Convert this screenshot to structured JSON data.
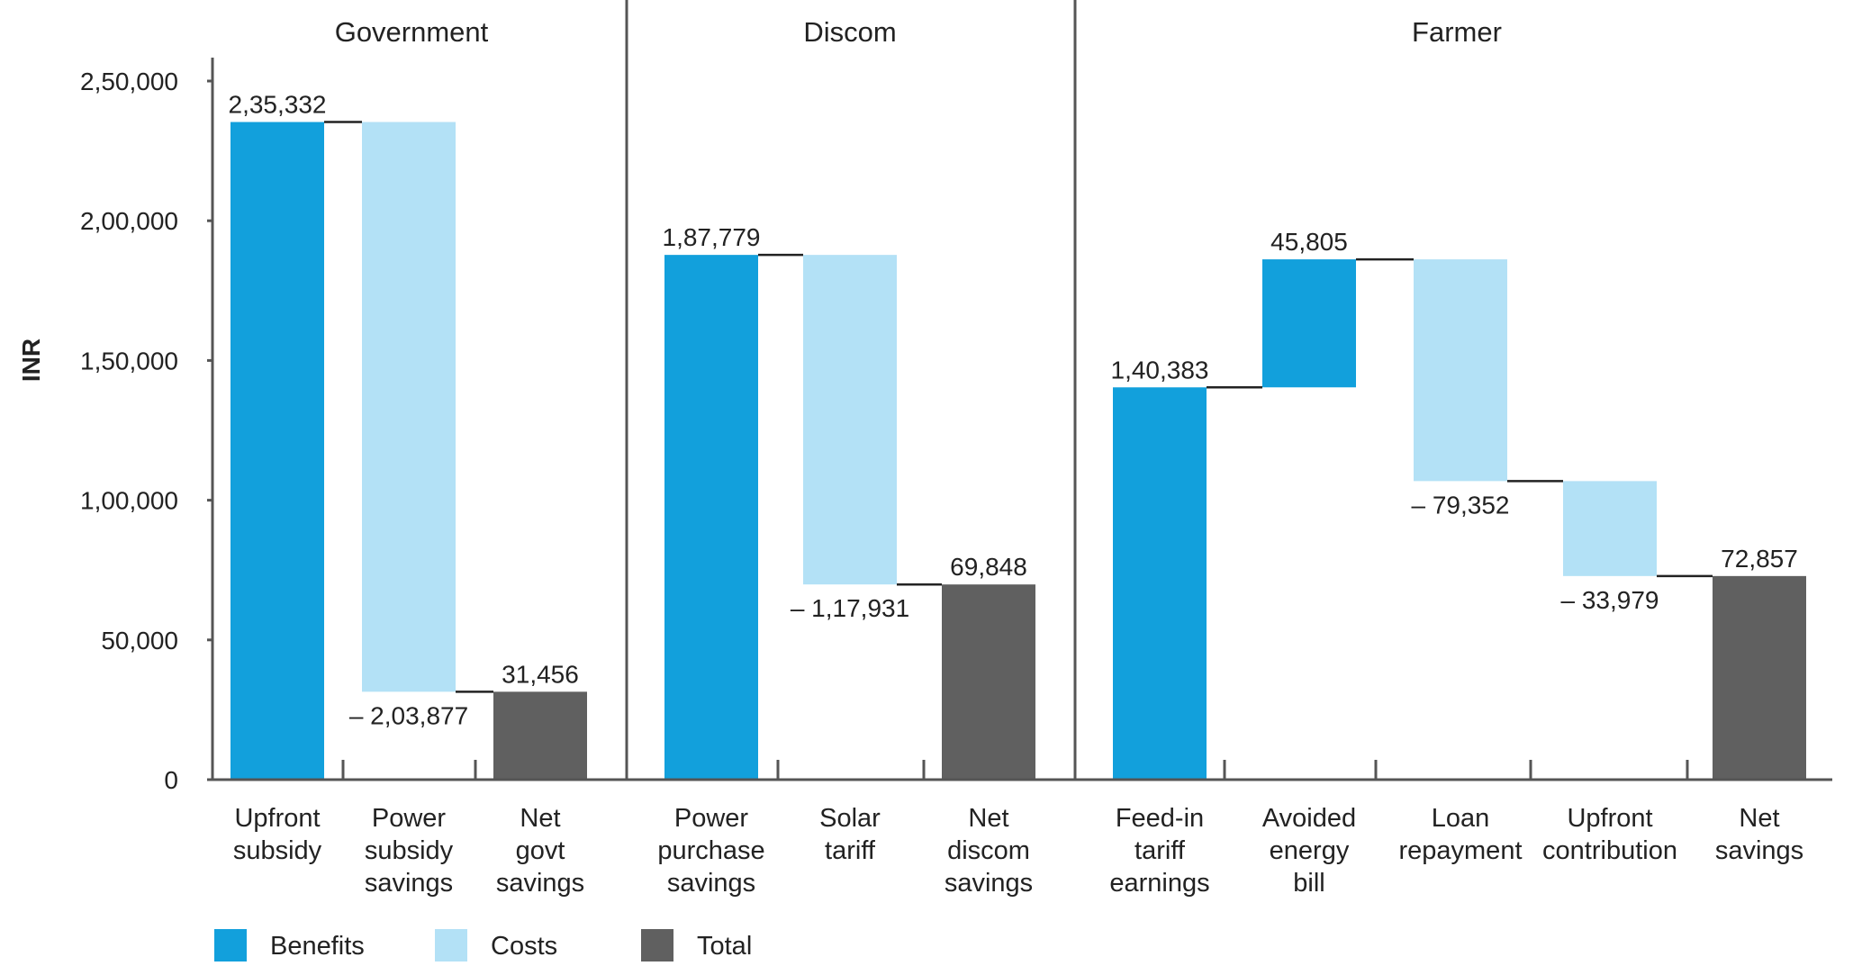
{
  "chart_data": {
    "type": "bar",
    "ylabel": "INR",
    "ylim": [
      0,
      250000
    ],
    "yticks": [
      {
        "value": 0,
        "label": "0"
      },
      {
        "value": 50000,
        "label": "50,000"
      },
      {
        "value": 100000,
        "label": "1,00,000"
      },
      {
        "value": 150000,
        "label": "1,50,000"
      },
      {
        "value": 200000,
        "label": "2,00,000"
      },
      {
        "value": 250000,
        "label": "2,50,000"
      }
    ],
    "grid": false,
    "legend_placement": "bottom-left",
    "legend": [
      {
        "key": "benefit",
        "label": "Benefits",
        "color": "#12a0dc"
      },
      {
        "key": "cost",
        "label": "Costs",
        "color": "#b3e1f6"
      },
      {
        "key": "total",
        "label": "Total",
        "color": "#606060"
      }
    ],
    "panels": [
      {
        "title": "Government",
        "bars": [
          {
            "category": [
              "Upfront",
              "subsidy"
            ],
            "kind": "benefit",
            "start": 0,
            "end": 235332,
            "value_label": "2,35,332",
            "label_pos": "top"
          },
          {
            "category": [
              "Power",
              "subsidy",
              "savings"
            ],
            "kind": "cost",
            "start": 235332,
            "end": 31455,
            "value_label": "– 2,03,877",
            "label_pos": "bottom"
          },
          {
            "category": [
              "Net",
              "govt",
              "savings"
            ],
            "kind": "total",
            "start": 0,
            "end": 31456,
            "value_label": "31,456",
            "label_pos": "top"
          }
        ]
      },
      {
        "title": "Discom",
        "bars": [
          {
            "category": [
              "Power",
              "purchase",
              "savings"
            ],
            "kind": "benefit",
            "start": 0,
            "end": 187779,
            "value_label": "1,87,779",
            "label_pos": "top"
          },
          {
            "category": [
              "Solar",
              "tariff"
            ],
            "kind": "cost",
            "start": 187779,
            "end": 69848,
            "value_label": "– 1,17,931",
            "label_pos": "bottom"
          },
          {
            "category": [
              "Net",
              "discom",
              "savings"
            ],
            "kind": "total",
            "start": 0,
            "end": 69848,
            "value_label": "69,848",
            "label_pos": "top"
          }
        ]
      },
      {
        "title": "Farmer",
        "bars": [
          {
            "category": [
              "Feed-in",
              "tariff",
              "earnings"
            ],
            "kind": "benefit",
            "start": 0,
            "end": 140383,
            "value_label": "1,40,383",
            "label_pos": "top"
          },
          {
            "category": [
              "Avoided",
              "energy",
              "bill"
            ],
            "kind": "benefit",
            "start": 140383,
            "end": 186188,
            "value_label": "45,805",
            "label_pos": "top"
          },
          {
            "category": [
              "Loan",
              "repayment"
            ],
            "kind": "cost",
            "start": 186188,
            "end": 106836,
            "value_label": "– 79,352",
            "label_pos": "bottom"
          },
          {
            "category": [
              "Upfront",
              "contribution"
            ],
            "kind": "cost",
            "start": 106836,
            "end": 72857,
            "value_label": "– 33,979",
            "label_pos": "bottom"
          },
          {
            "category": [
              "Net",
              "savings"
            ],
            "kind": "total",
            "start": 0,
            "end": 72857,
            "value_label": "72,857",
            "label_pos": "top"
          }
        ]
      }
    ]
  }
}
